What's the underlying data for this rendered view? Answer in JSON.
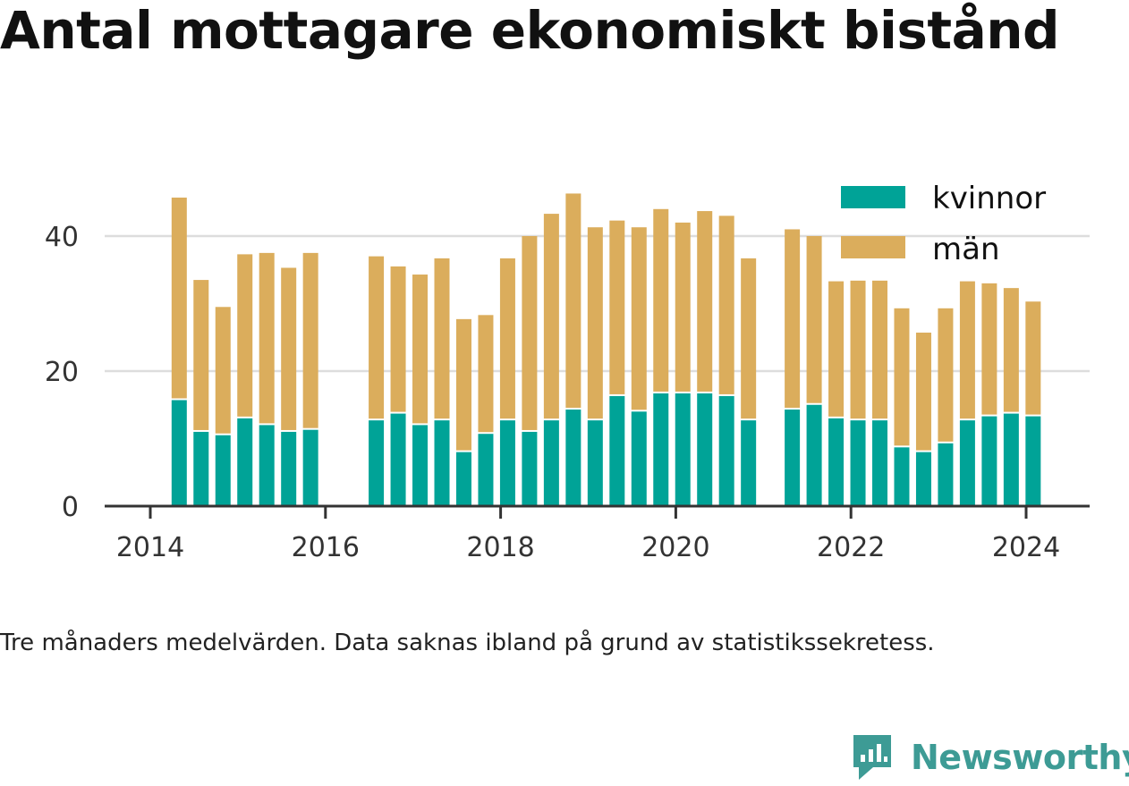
{
  "title": "Antal mottagare ekonomiskt bistånd",
  "caption": "Tre månaders medelvärden. Data saknas ibland på grund av statistikssekretess.",
  "brand": {
    "name": "Newsworthy",
    "logo_icon": "newsworthy-logo-icon",
    "color": "#3d9b95"
  },
  "colors": {
    "kvinnor": "#00a397",
    "man": "#dbad5c",
    "grid": "#dddddd",
    "axis": "#333333"
  },
  "chart_data": {
    "type": "bar",
    "stacked": true,
    "title": "Antal mottagare ekonomiskt bistånd",
    "xlabel": "",
    "ylabel": "",
    "ylim": [
      0,
      50
    ],
    "xlim": [
      2013.0,
      2024.4
    ],
    "yticks": [
      0,
      20,
      40
    ],
    "xticks": [
      {
        "value": 2014,
        "label": "2014"
      },
      {
        "value": 2016,
        "label": "2016"
      },
      {
        "value": 2018,
        "label": "2018"
      },
      {
        "value": 2020,
        "label": "2020"
      },
      {
        "value": 2022,
        "label": "2022"
      },
      {
        "value": 2024,
        "label": "2024"
      }
    ],
    "grid": true,
    "legend_position": "top-right",
    "x": [
      2014.33,
      2014.58,
      2014.83,
      2015.08,
      2015.33,
      2015.58,
      2015.83,
      2016.58,
      2016.83,
      2017.08,
      2017.33,
      2017.58,
      2017.83,
      2018.08,
      2018.33,
      2018.58,
      2018.83,
      2019.08,
      2019.33,
      2019.58,
      2019.83,
      2020.08,
      2020.33,
      2020.58,
      2020.83,
      2021.33,
      2021.58,
      2021.83,
      2022.08,
      2022.33,
      2022.58,
      2022.83,
      2023.08,
      2023.33,
      2023.58,
      2023.83,
      2024.08
    ],
    "series": [
      {
        "name": "kvinnor",
        "values": [
          15.7,
          11.0,
          10.5,
          13.0,
          12.0,
          11.0,
          11.3,
          12.7,
          13.7,
          12.0,
          12.7,
          8.0,
          10.7,
          12.7,
          11.0,
          12.7,
          14.3,
          12.7,
          16.3,
          14.0,
          16.7,
          16.7,
          16.7,
          16.3,
          12.7,
          14.3,
          15.0,
          13.0,
          12.7,
          12.7,
          8.7,
          8.0,
          9.3,
          12.7,
          13.3,
          13.7,
          13.3
        ]
      },
      {
        "name": "män",
        "values": [
          30.0,
          22.5,
          19.0,
          24.3,
          25.5,
          24.3,
          26.2,
          24.3,
          21.8,
          22.3,
          24.0,
          19.7,
          17.6,
          24.0,
          29.0,
          30.6,
          32.0,
          28.6,
          26.0,
          27.3,
          27.3,
          25.3,
          27.0,
          26.7,
          24.0,
          26.7,
          25.0,
          20.3,
          20.7,
          20.7,
          20.6,
          17.7,
          20.0,
          20.6,
          19.7,
          18.6,
          17.0
        ]
      }
    ]
  }
}
